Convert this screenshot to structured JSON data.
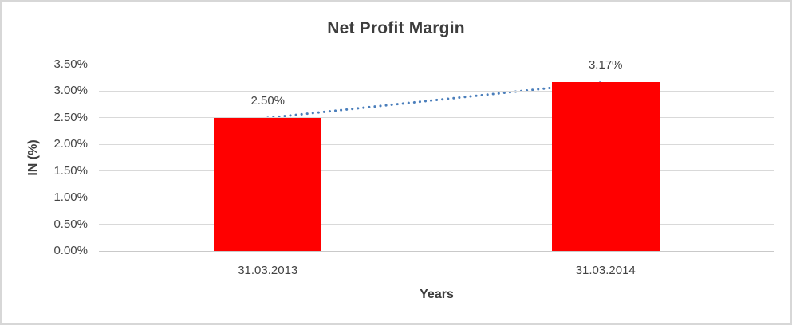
{
  "chart_data": {
    "type": "bar",
    "title": "Net Profit Margin",
    "categories": [
      "31.03.2013",
      "31.03.2014"
    ],
    "series": [
      {
        "name": "Net Profit Margin",
        "values": [
          2.5,
          3.17
        ]
      }
    ],
    "data_labels": [
      "2.50%",
      "3.17%"
    ],
    "xlabel": "Years",
    "ylabel": "IN (%)",
    "ylim": [
      0,
      3.5
    ],
    "ytick_step": 0.5,
    "yticks": [
      "0.00%",
      "0.50%",
      "1.00%",
      "1.50%",
      "2.00%",
      "2.50%",
      "3.00%",
      "3.50%"
    ],
    "grid": true,
    "legend": "none",
    "bar_color": "#ff0000",
    "trendline": {
      "style": "dotted",
      "color": "#4a7ebb",
      "from": 2.5,
      "to": 3.17
    },
    "gridline_color": "#d9d9d9",
    "axis_line_color": "#c9c9c9",
    "text_color": "#444444",
    "title_color": "#3d3d3d"
  }
}
